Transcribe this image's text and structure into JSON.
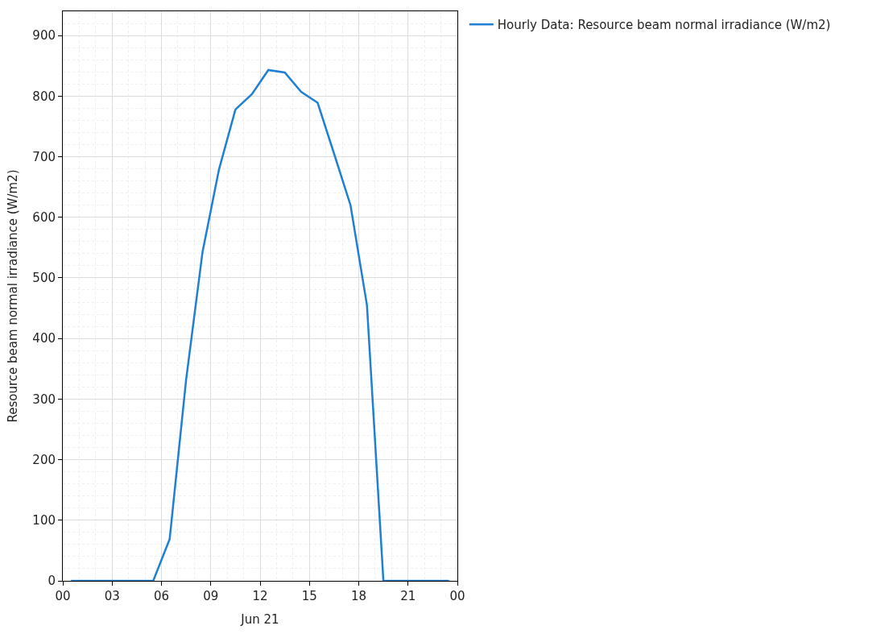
{
  "chart_data": {
    "type": "line",
    "xlabel": "Jun 21",
    "ylabel": "Resource beam normal irradiance (W/m2)",
    "x": [
      0.5,
      1.5,
      2.5,
      3.5,
      4.5,
      5.5,
      6.5,
      7.5,
      8.5,
      9.5,
      10.5,
      11.5,
      12.5,
      13.5,
      14.5,
      15.5,
      16.5,
      17.5,
      18.5,
      19.5,
      20.5,
      21.5,
      22.5,
      23.5
    ],
    "series": [
      {
        "name": "Hourly Data: Resource beam normal irradiance (W/m2)",
        "color": "#1f7fd4",
        "values": [
          0,
          0,
          0,
          0,
          0,
          0,
          69,
          332,
          543,
          679,
          778,
          803,
          843,
          839,
          807,
          789,
          705,
          620,
          455,
          0,
          0,
          0,
          0,
          0
        ]
      }
    ],
    "xlim": [
      0,
      24
    ],
    "xticks": [
      {
        "value": 0,
        "label": "00"
      },
      {
        "value": 3,
        "label": "03"
      },
      {
        "value": 6,
        "label": "06"
      },
      {
        "value": 9,
        "label": "09"
      },
      {
        "value": 12,
        "label": "12"
      },
      {
        "value": 15,
        "label": "15"
      },
      {
        "value": 18,
        "label": "18"
      },
      {
        "value": 21,
        "label": "21"
      },
      {
        "value": 24,
        "label": "00"
      }
    ],
    "ylim": [
      0,
      940
    ],
    "yticks": [
      0,
      100,
      200,
      300,
      400,
      500,
      600,
      700,
      800,
      900
    ],
    "grid": true,
    "legend": "top right",
    "line_style": "solid",
    "marker": "none"
  }
}
